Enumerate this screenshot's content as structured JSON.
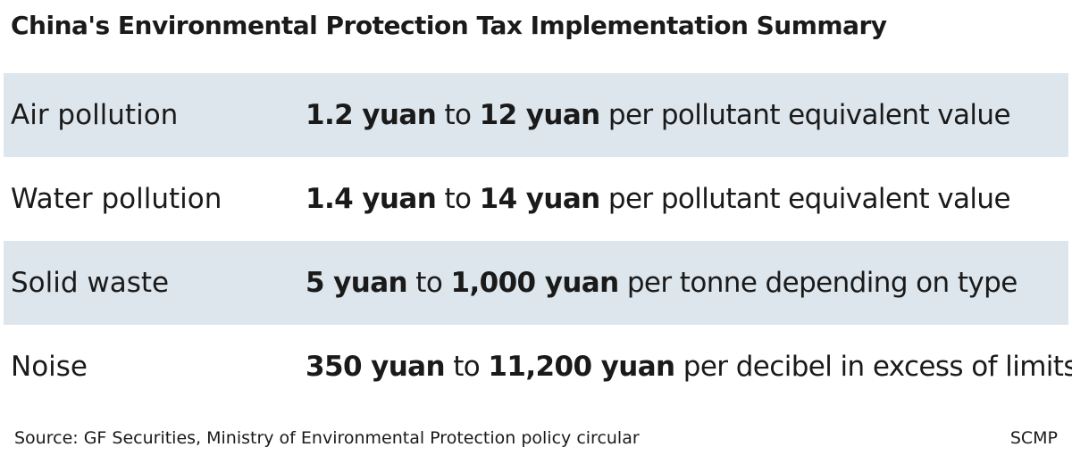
{
  "title": "China's Environmental Protection Tax Implementation Summary",
  "rows": [
    {
      "category": "Air pollution",
      "low": "1.2 yuan",
      "connector": " to ",
      "high": "12 yuan",
      "unit": " per pollutant equivalent value"
    },
    {
      "category": "Water pollution",
      "low": "1.4 yuan",
      "connector": " to ",
      "high": "14 yuan",
      "unit": " per pollutant equivalent value"
    },
    {
      "category": "Solid waste",
      "low": "5 yuan",
      "connector": " to ",
      "high": "1,000 yuan",
      "unit": " per tonne depending on type"
    },
    {
      "category": "Noise",
      "low": "350 yuan",
      "connector": " to ",
      "high": "11,200 yuan",
      "unit": " per decibel in excess of limits"
    }
  ],
  "footer": {
    "source": "Source: GF Securities, Ministry of Environmental Protection policy circular",
    "credit": "SCMP"
  },
  "colors": {
    "stripe": "#dde6ec",
    "text": "#1a1a1a"
  }
}
